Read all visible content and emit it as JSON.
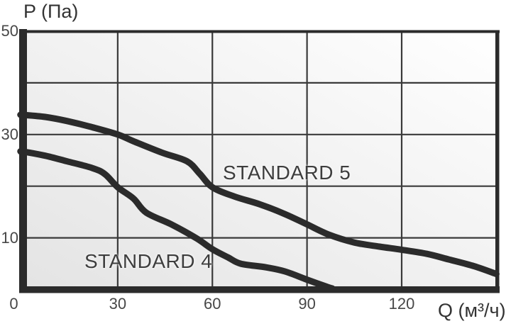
{
  "colors": {
    "curve": "#2b2b2b",
    "grid": "#3a3a3a",
    "axis": "#2b2b2b",
    "tick_text": "#474747",
    "title_text": "#333333",
    "label_text": "#3d3d3d",
    "plot_bg_bottom_left": "#e4e4e4",
    "plot_bg_top_right": "#ffffff"
  },
  "chart_data": {
    "type": "line",
    "title": "",
    "xlabel": "Q (м³/ч)",
    "ylabel": "P (Па)",
    "xlim": [
      0,
      150
    ],
    "ylim": [
      0,
      50
    ],
    "grid": true,
    "legend_position": "inline-labels-on-plot",
    "x_ticks": [
      {
        "value": 0,
        "label": "0"
      },
      {
        "value": 30,
        "label": "30"
      },
      {
        "value": 60,
        "label": "60"
      },
      {
        "value": 90,
        "label": "90"
      },
      {
        "value": 120,
        "label": "120"
      }
    ],
    "y_ticks": [
      {
        "value": 50,
        "label": "50"
      },
      {
        "value": 30,
        "label": "30"
      },
      {
        "value": 10,
        "label": "10"
      }
    ],
    "x_gridlines": [
      30,
      60,
      90,
      120
    ],
    "y_gridlines": [
      10,
      20,
      30,
      40
    ],
    "series": [
      {
        "name": "STANDARD 4",
        "points": [
          [
            0,
            26.7
          ],
          [
            7,
            25.9
          ],
          [
            14,
            24.8
          ],
          [
            22,
            23.5
          ],
          [
            26,
            22.3
          ],
          [
            30,
            19.8
          ],
          [
            35,
            17.6
          ],
          [
            39,
            14.9
          ],
          [
            47,
            12.6
          ],
          [
            55,
            9.9
          ],
          [
            60,
            7.8
          ],
          [
            65,
            6.2
          ],
          [
            69,
            5.0
          ],
          [
            77,
            4.3
          ],
          [
            83,
            3.5
          ],
          [
            90,
            1.9
          ],
          [
            96,
            0.6
          ],
          [
            98,
            0.2
          ]
        ]
      },
      {
        "name": "STANDARD 5",
        "points": [
          [
            0,
            33.8
          ],
          [
            7,
            33.4
          ],
          [
            14,
            32.6
          ],
          [
            22,
            31.4
          ],
          [
            30,
            30.0
          ],
          [
            35,
            28.7
          ],
          [
            44,
            26.5
          ],
          [
            52,
            24.8
          ],
          [
            56,
            22.4
          ],
          [
            60,
            19.8
          ],
          [
            67,
            18.0
          ],
          [
            75,
            16.5
          ],
          [
            83,
            14.6
          ],
          [
            90,
            12.6
          ],
          [
            97,
            10.6
          ],
          [
            105,
            9.1
          ],
          [
            113,
            8.3
          ],
          [
            120,
            7.7
          ],
          [
            128,
            6.9
          ],
          [
            135,
            5.8
          ],
          [
            143,
            4.5
          ],
          [
            150,
            3.0
          ]
        ]
      }
    ]
  }
}
